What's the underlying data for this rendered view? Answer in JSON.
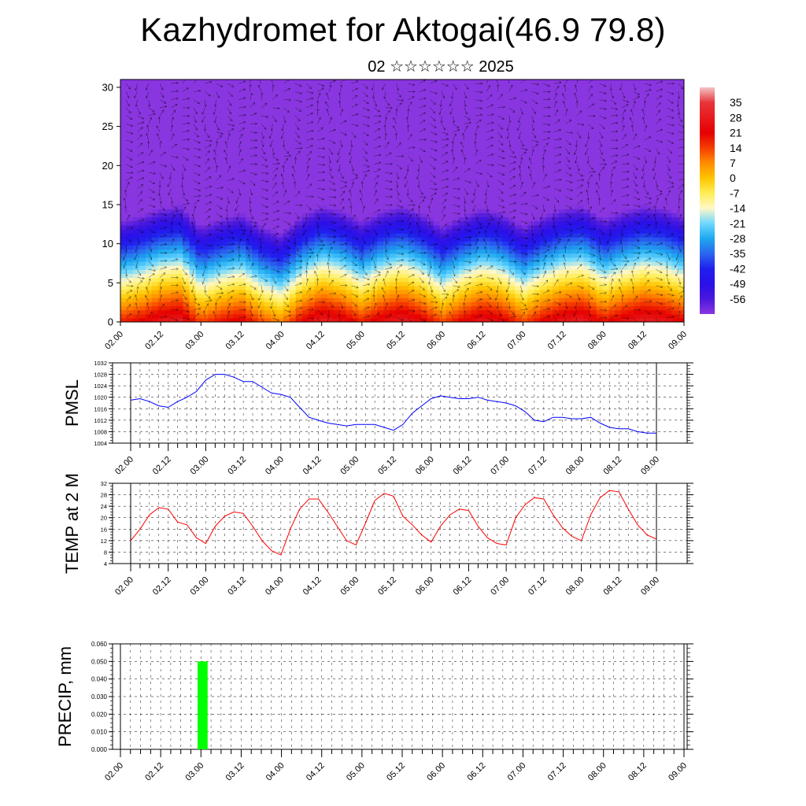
{
  "header": {
    "title": "Kazhydromet for Aktogai(46.9 79.8)",
    "subtitle": "02 ☆☆☆☆☆☆ 2025"
  },
  "time_ticks": [
    "02.00",
    "02.12",
    "03.00",
    "03.12",
    "04.00",
    "04.12",
    "05.00",
    "05.12",
    "06.00",
    "06.12",
    "07.00",
    "07.12",
    "08.00",
    "08.12",
    "09.00"
  ],
  "colors": {
    "pmsl_line": "#0000ff",
    "temp_line": "#ff0000",
    "precip_bar": "#00ff00",
    "vectors": "#000000"
  },
  "chart_data": [
    {
      "id": "temperature-cross-section",
      "type": "heatmap",
      "title": "",
      "xlabel": "",
      "ylabel": "",
      "x_range": [
        0,
        168
      ],
      "ylim": [
        0,
        31
      ],
      "y_ticks": [
        0,
        5,
        10,
        15,
        20,
        25,
        30
      ],
      "overlay": "wind vectors",
      "colorbar": {
        "labels": [
          "35",
          "28",
          "21",
          "14",
          "7",
          "0",
          "-7",
          "-14",
          "-21",
          "-28",
          "-35",
          "-42",
          "-49",
          "-56"
        ],
        "range": [
          -63,
          42
        ],
        "stops": [
          {
            "v": 42,
            "c": "#f2c4c4"
          },
          {
            "v": 35,
            "c": "#e8353a"
          },
          {
            "v": 21,
            "c": "#e60000"
          },
          {
            "v": 14,
            "c": "#f53d00"
          },
          {
            "v": 7,
            "c": "#ff8c00"
          },
          {
            "v": 0,
            "c": "#ffc400"
          },
          {
            "v": -7,
            "c": "#ffee55"
          },
          {
            "v": -14,
            "c": "#fff7c8"
          },
          {
            "v": -21,
            "c": "#6ed8ff"
          },
          {
            "v": -28,
            "c": "#1ea8f0"
          },
          {
            "v": -35,
            "c": "#2a66ee"
          },
          {
            "v": -42,
            "c": "#2020ee"
          },
          {
            "v": -49,
            "c": "#2a10e8"
          },
          {
            "v": -56,
            "c": "#4a18dc"
          },
          {
            "v": -63,
            "c": "#8a36e0"
          }
        ]
      },
      "surface_temperature": [
        [
          0,
          18
        ],
        [
          6,
          22
        ],
        [
          12,
          28
        ],
        [
          18,
          30
        ],
        [
          24,
          14
        ],
        [
          30,
          20
        ],
        [
          36,
          24
        ],
        [
          42,
          14
        ],
        [
          48,
          8
        ],
        [
          54,
          22
        ],
        [
          60,
          30
        ],
        [
          66,
          26
        ],
        [
          72,
          18
        ],
        [
          78,
          26
        ],
        [
          84,
          30
        ],
        [
          90,
          24
        ],
        [
          96,
          14
        ],
        [
          102,
          22
        ],
        [
          108,
          28
        ],
        [
          114,
          24
        ],
        [
          120,
          14
        ],
        [
          126,
          22
        ],
        [
          132,
          28
        ],
        [
          138,
          30
        ],
        [
          144,
          20
        ],
        [
          150,
          26
        ],
        [
          156,
          30
        ],
        [
          162,
          28
        ],
        [
          168,
          22
        ]
      ],
      "tropopause_height": [
        [
          0,
          17.5
        ],
        [
          6,
          18
        ],
        [
          12,
          16.5
        ],
        [
          18,
          15.5
        ],
        [
          24,
          14.5
        ],
        [
          30,
          16
        ],
        [
          36,
          17
        ],
        [
          42,
          17
        ],
        [
          48,
          16.8
        ],
        [
          54,
          17
        ],
        [
          60,
          17
        ],
        [
          66,
          17
        ],
        [
          72,
          16.8
        ],
        [
          78,
          16.2
        ],
        [
          84,
          16.5
        ],
        [
          90,
          17
        ],
        [
          96,
          16.5
        ],
        [
          102,
          16.8
        ],
        [
          108,
          17
        ],
        [
          114,
          16
        ],
        [
          120,
          15.5
        ],
        [
          126,
          17.5
        ],
        [
          132,
          18
        ],
        [
          138,
          17.5
        ],
        [
          144,
          17
        ],
        [
          150,
          17
        ],
        [
          156,
          17.5
        ],
        [
          162,
          17.5
        ],
        [
          168,
          17.5
        ]
      ]
    },
    {
      "id": "pmsl",
      "type": "line",
      "title": "",
      "xlabel": "",
      "ylabel": "PMSL",
      "ylim": [
        1004,
        1032
      ],
      "y_ticks": [
        1004,
        1008,
        1012,
        1016,
        1020,
        1024,
        1028,
        1032
      ],
      "x_range": [
        0,
        168
      ],
      "series": [
        {
          "x": [
            0,
            3,
            6,
            9,
            12,
            15,
            18,
            21,
            24,
            27,
            30,
            33,
            36,
            39,
            42,
            45,
            48,
            51,
            54,
            57,
            60,
            63,
            66,
            69,
            72,
            75,
            78,
            81,
            84,
            87,
            90,
            93,
            96,
            99,
            102,
            105,
            108,
            111,
            114,
            117,
            120,
            123,
            126,
            129,
            132,
            135,
            138,
            141,
            144,
            147,
            150,
            153,
            156,
            159,
            162,
            165,
            168
          ],
          "y": [
            1019,
            1019.5,
            1018.5,
            1017,
            1016.5,
            1018.5,
            1020,
            1022,
            1026,
            1028,
            1028,
            1027,
            1025.5,
            1025.5,
            1023.5,
            1021.5,
            1021,
            1020,
            1016.5,
            1013,
            1012,
            1011,
            1010.5,
            1010,
            1010.5,
            1010.5,
            1010.5,
            1009.5,
            1008.5,
            1010.5,
            1014.5,
            1017,
            1019.5,
            1020.5,
            1020,
            1019.5,
            1019.5,
            1020,
            1019,
            1018.5,
            1018,
            1017,
            1015,
            1012,
            1011.5,
            1013,
            1013,
            1012.5,
            1012.5,
            1013,
            1011,
            1009.5,
            1009,
            1009,
            1008,
            1007.5,
            1007.5
          ]
        }
      ]
    },
    {
      "id": "temp-2m",
      "type": "line",
      "title": "",
      "xlabel": "",
      "ylabel": "TEMP at 2 M",
      "ylim": [
        4,
        32
      ],
      "y_ticks": [
        4,
        8,
        12,
        16,
        20,
        24,
        28,
        32
      ],
      "x_range": [
        0,
        168
      ],
      "series": [
        {
          "x": [
            0,
            3,
            6,
            9,
            12,
            15,
            18,
            21,
            24,
            27,
            30,
            33,
            36,
            39,
            42,
            45,
            48,
            51,
            54,
            57,
            60,
            63,
            66,
            69,
            72,
            75,
            78,
            81,
            84,
            87,
            90,
            93,
            96,
            99,
            102,
            105,
            108,
            111,
            114,
            117,
            120,
            123,
            126,
            129,
            132,
            135,
            138,
            141,
            144,
            147,
            150,
            153,
            156,
            159,
            162,
            165,
            168
          ],
          "y": [
            12,
            16,
            21,
            23.5,
            23,
            18.5,
            17.5,
            13,
            11,
            17,
            20.5,
            22,
            21.5,
            17,
            12,
            8.5,
            7,
            16,
            23,
            26.5,
            26.5,
            22,
            17,
            12,
            10.5,
            18,
            26,
            28.5,
            27.5,
            20.5,
            17.5,
            14,
            11.5,
            17,
            21,
            23,
            22.5,
            17,
            13,
            11,
            10.5,
            20,
            24.5,
            27,
            26.5,
            21,
            16.5,
            13.5,
            12,
            21,
            27,
            29.5,
            29,
            23,
            17.5,
            14,
            12.5
          ]
        }
      ]
    },
    {
      "id": "precip",
      "type": "bar",
      "title": "",
      "xlabel": "",
      "ylabel": "PRECIP, mm",
      "ylim": [
        0,
        0.06
      ],
      "y_ticks": [
        "0.000",
        "0.010",
        "0.020",
        "0.030",
        "0.040",
        "0.050",
        "0.060"
      ],
      "x_range": [
        0,
        168
      ],
      "bars": [
        {
          "x_start": 23,
          "x_end": 26,
          "value": 0.05
        }
      ]
    }
  ]
}
